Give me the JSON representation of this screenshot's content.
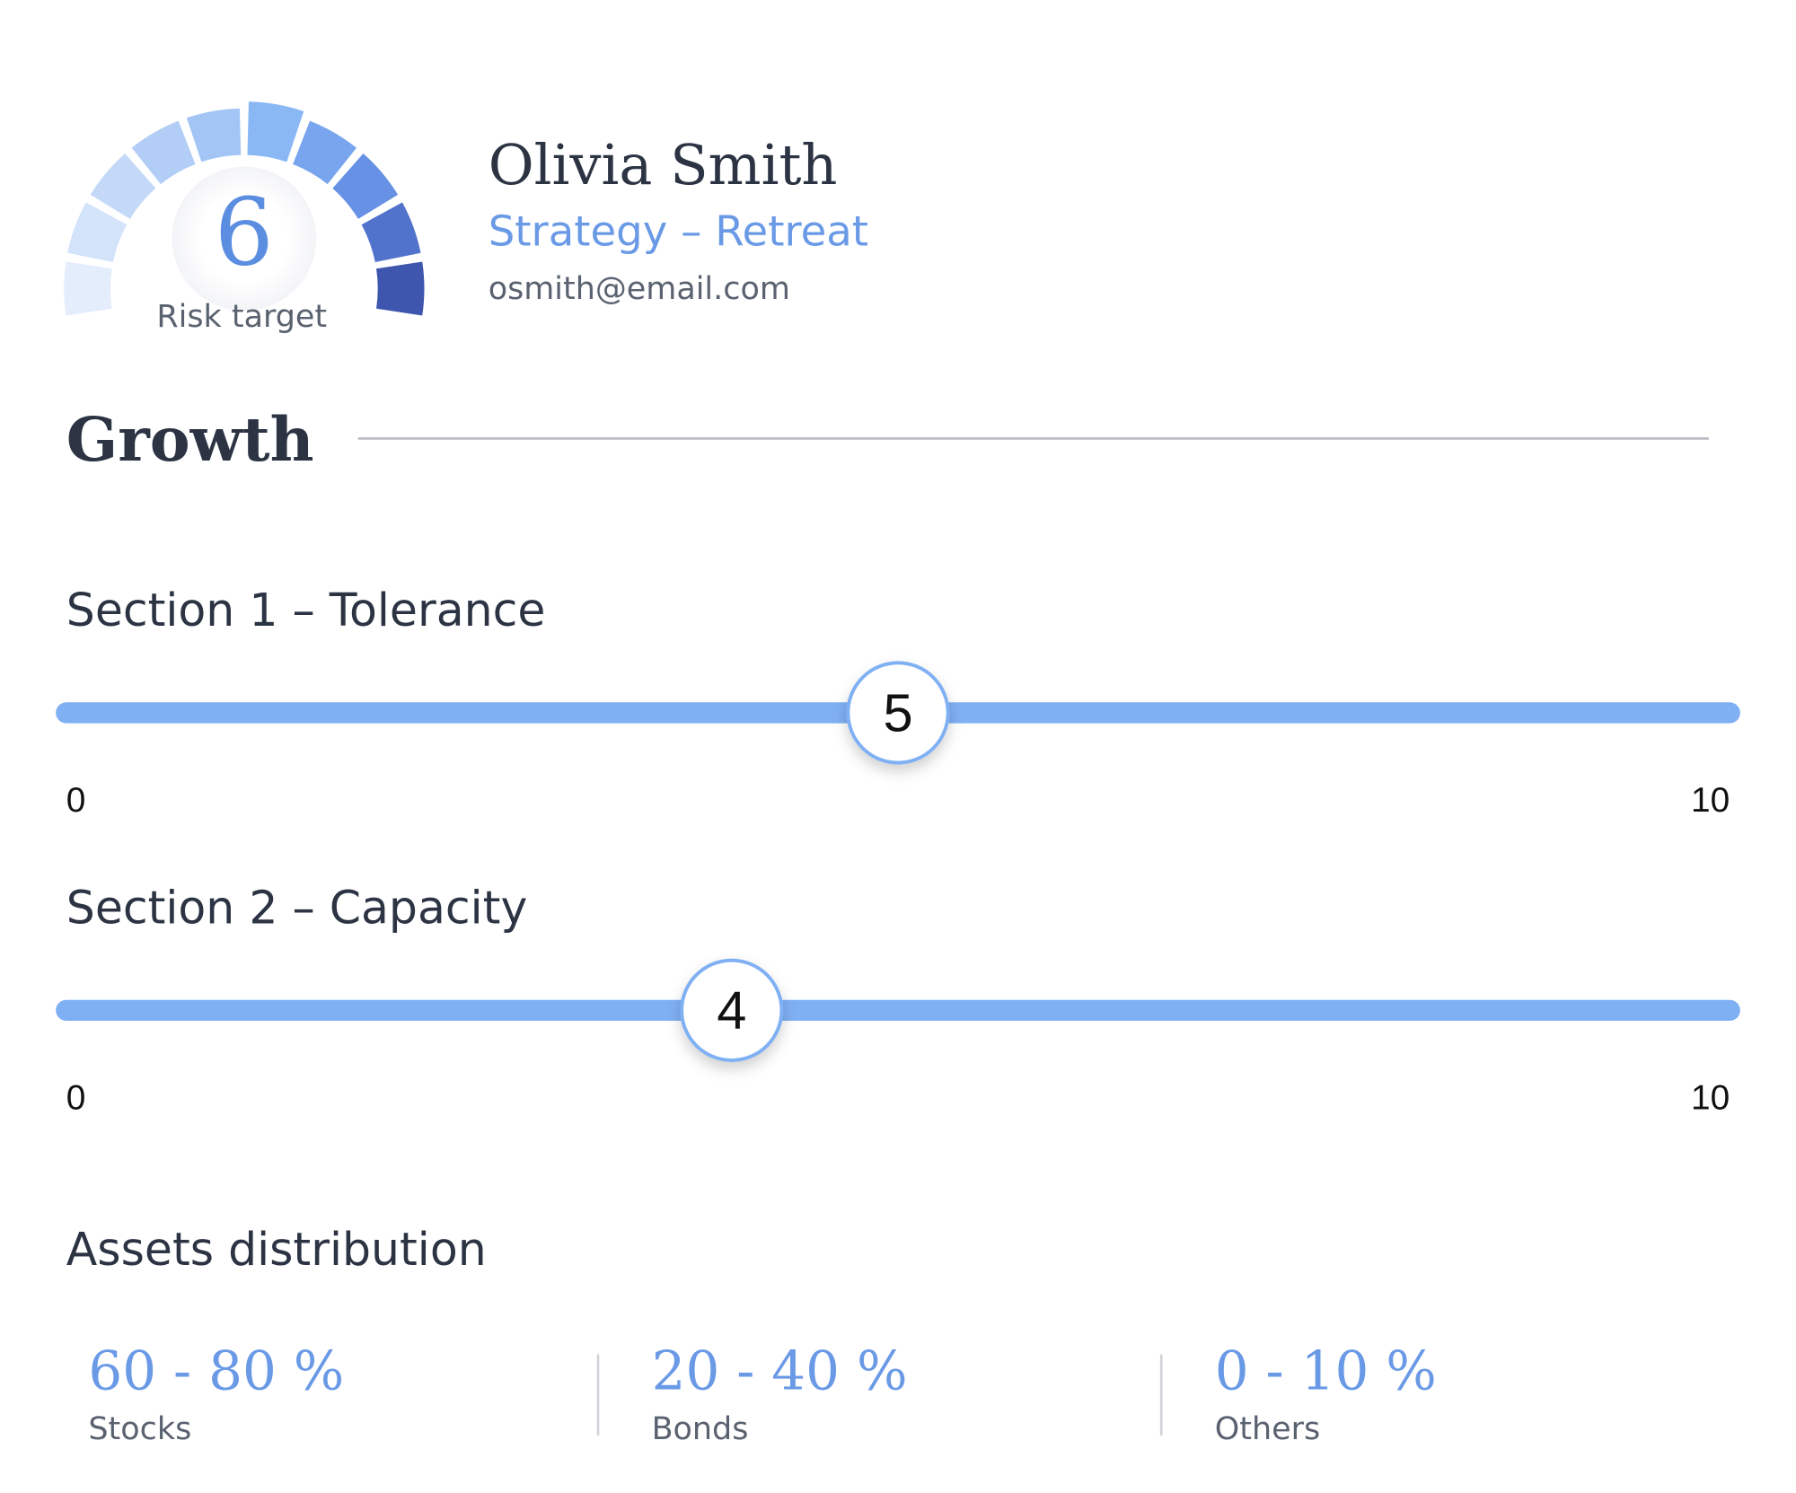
{
  "profile": {
    "name": "Olivia Smith",
    "strategy": "Strategy – Retreat",
    "email": "osmith@email.com"
  },
  "gauge": {
    "value": 6,
    "label": "Risk target"
  },
  "heading": "Growth",
  "sliders": [
    {
      "title": "Section 1 – Tolerance",
      "value": 5,
      "min": 0,
      "max": 10
    },
    {
      "title": "Section 2 – Capacity",
      "value": 4,
      "min": 0,
      "max": 10
    }
  ],
  "assets": {
    "title": "Assets distribution",
    "items": [
      {
        "range": "60 - 80 %",
        "label": "Stocks"
      },
      {
        "range": "20 - 40 %",
        "label": "Bonds"
      },
      {
        "range": "0 - 10 %",
        "label": "Others"
      }
    ]
  }
}
